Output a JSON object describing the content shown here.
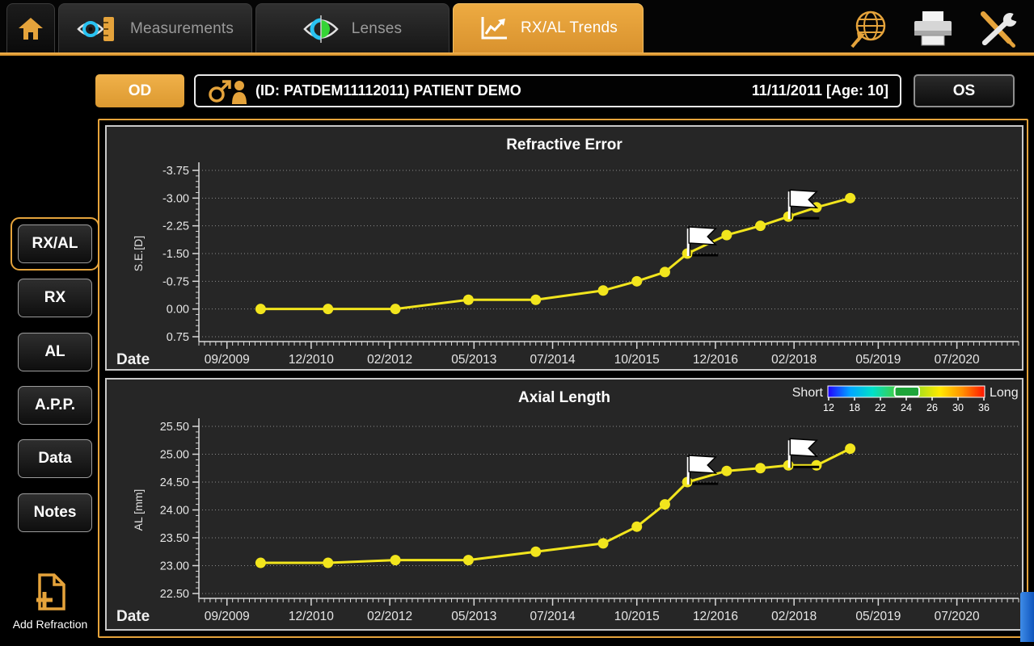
{
  "titlebar": {
    "tabs": [
      {
        "label": "",
        "icon": "home-icon",
        "active": false
      },
      {
        "label": "Measurements",
        "icon": "eye-ruler-icon",
        "active": false
      },
      {
        "label": "Lenses",
        "icon": "eye-lens-icon",
        "active": false
      },
      {
        "label": "RX/AL Trends",
        "icon": "trend-chart-icon",
        "active": true
      }
    ],
    "actions": [
      "globe-icon",
      "printer-icon",
      "tools-icon"
    ]
  },
  "patient": {
    "od_label": "OD",
    "os_label": "OS",
    "gender": "male",
    "info": "(ID: PATDEM11112011) PATIENT DEMO",
    "visit_date": "11/11/2011 [Age: 10]"
  },
  "sidebar": {
    "items": [
      {
        "label": "RX/AL",
        "selected": true
      },
      {
        "label": "RX",
        "selected": false
      },
      {
        "label": "AL",
        "selected": false
      },
      {
        "label": "A.P.P.",
        "selected": false
      },
      {
        "label": "Data",
        "selected": false
      },
      {
        "label": "Notes",
        "selected": false
      }
    ],
    "add_refraction_label": "Add Refraction"
  },
  "colors": {
    "accent": "#e5a33b",
    "series": "#f2e51d",
    "chart_bg": "#262626",
    "grid": "#8c8c8c",
    "axis": "#d8d8d8",
    "tick_text": "#e5e5e5"
  },
  "chart_data": [
    {
      "type": "line",
      "title": "Refractive Error",
      "xlabel": "Date",
      "ylabel": "S.E.[D]",
      "y_axis_inverted": true,
      "y_tick_labels": [
        "-3.75",
        "-3.00",
        "-2.25",
        "-1.50",
        "-0.75",
        "0.00",
        "0.75"
      ],
      "x_tick_labels": [
        "09/2009",
        "12/2010",
        "02/2012",
        "05/2013",
        "07/2014",
        "10/2015",
        "12/2016",
        "02/2018",
        "05/2019",
        "07/2020"
      ],
      "x_tick_months": [
        0,
        15,
        29,
        44,
        58,
        73,
        87,
        101,
        116,
        130
      ],
      "x_range_months": [
        -5,
        141
      ],
      "grid": "horizontal-dotted",
      "series": [
        {
          "name": "Spherical Equivalent OD",
          "color": "#f2e51d",
          "x_months": [
            6,
            18,
            30,
            43,
            55,
            67,
            73,
            78,
            82,
            89,
            95,
            100,
            105,
            111
          ],
          "values": [
            0.0,
            0.0,
            0.0,
            -0.25,
            -0.25,
            -0.5,
            -0.75,
            -1.0,
            -1.5,
            -2.0,
            -2.25,
            -2.5,
            -2.75,
            -3.0
          ],
          "flag_indices": [
            8,
            11
          ]
        }
      ]
    },
    {
      "type": "line",
      "title": "Axial Length",
      "xlabel": "Date",
      "ylabel": "AL [mm]",
      "y_axis_inverted": false,
      "y_tick_labels": [
        "25.50",
        "25.00",
        "24.50",
        "24.00",
        "23.50",
        "23.00",
        "22.50"
      ],
      "x_tick_labels": [
        "09/2009",
        "12/2010",
        "02/2012",
        "05/2013",
        "07/2014",
        "10/2015",
        "12/2016",
        "02/2018",
        "05/2019",
        "07/2020"
      ],
      "x_tick_months": [
        0,
        15,
        29,
        44,
        58,
        73,
        87,
        101,
        116,
        130
      ],
      "x_range_months": [
        -5,
        141
      ],
      "grid": "horizontal-dotted",
      "series": [
        {
          "name": "Axial Length OD",
          "color": "#f2e51d",
          "x_months": [
            6,
            18,
            30,
            43,
            55,
            67,
            73,
            78,
            82,
            89,
            95,
            100,
            105,
            111
          ],
          "values": [
            23.05,
            23.05,
            23.1,
            23.1,
            23.25,
            23.4,
            23.7,
            24.1,
            24.5,
            24.7,
            24.75,
            24.8,
            24.8,
            25.1
          ],
          "flag_indices": [
            8,
            11
          ]
        }
      ],
      "scale_legend": {
        "left_label": "Short",
        "right_label": "Long",
        "tick_labels": [
          "12",
          "18",
          "22",
          "24",
          "26",
          "30",
          "36"
        ],
        "gradient": [
          "#2200ff",
          "#00a6ff",
          "#00e0c8",
          "#3ecf4a",
          "#a6de1c",
          "#ffe900",
          "#ff9100",
          "#ff1500"
        ],
        "marker_color": "#1ea53a",
        "marker_index_span": [
          2.55,
          3.5
        ]
      }
    }
  ]
}
